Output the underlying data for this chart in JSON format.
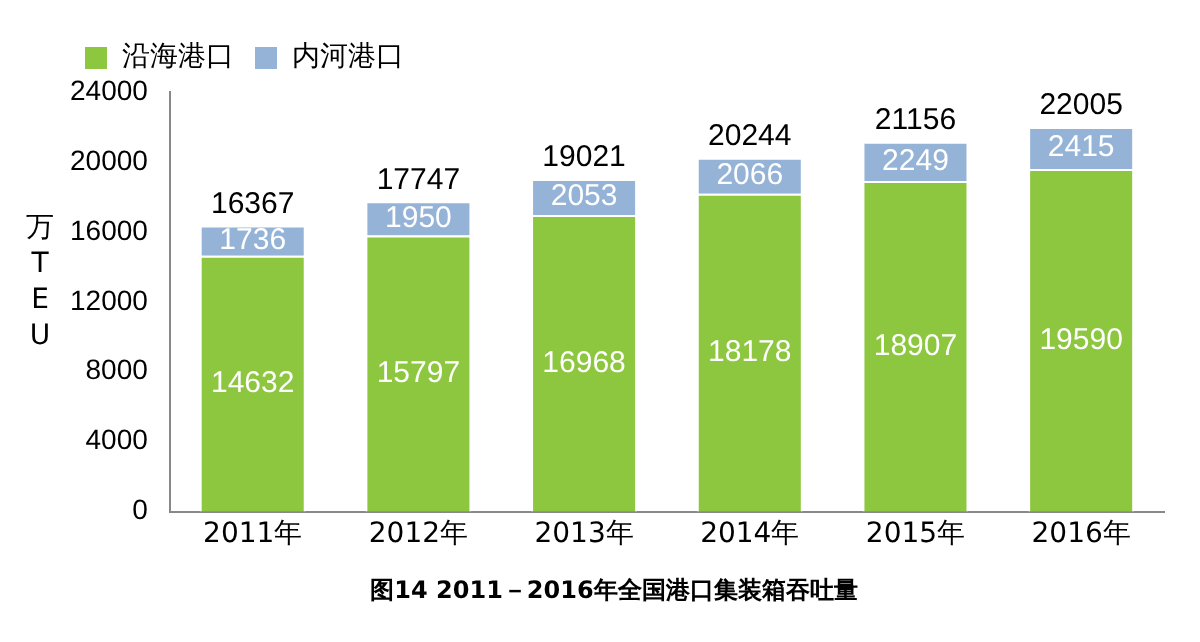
{
  "chart_data": {
    "type": "bar",
    "stacked": true,
    "title": "图14 2011－2016年全国港口集装箱吞吐量",
    "ylabel": "万TEU",
    "categories": [
      "2011年",
      "2012年",
      "2013年",
      "2014年",
      "2015年",
      "2016年"
    ],
    "series": [
      {
        "name": "沿海港口",
        "color": "#8dc63f",
        "values": [
          14632,
          15797,
          16968,
          18178,
          18907,
          19590
        ]
      },
      {
        "name": "内河港口",
        "color": "#95b3d7",
        "values": [
          1736,
          1950,
          2053,
          2066,
          2249,
          2415
        ]
      }
    ],
    "totals": [
      "16367",
      "17747",
      "19021",
      "20244",
      "21156",
      "22005"
    ],
    "ylim": [
      0,
      24000
    ],
    "yticks": [
      0,
      4000,
      8000,
      12000,
      16000,
      20000,
      24000
    ],
    "grid": false,
    "legend": "top left",
    "data_labels": true
  }
}
